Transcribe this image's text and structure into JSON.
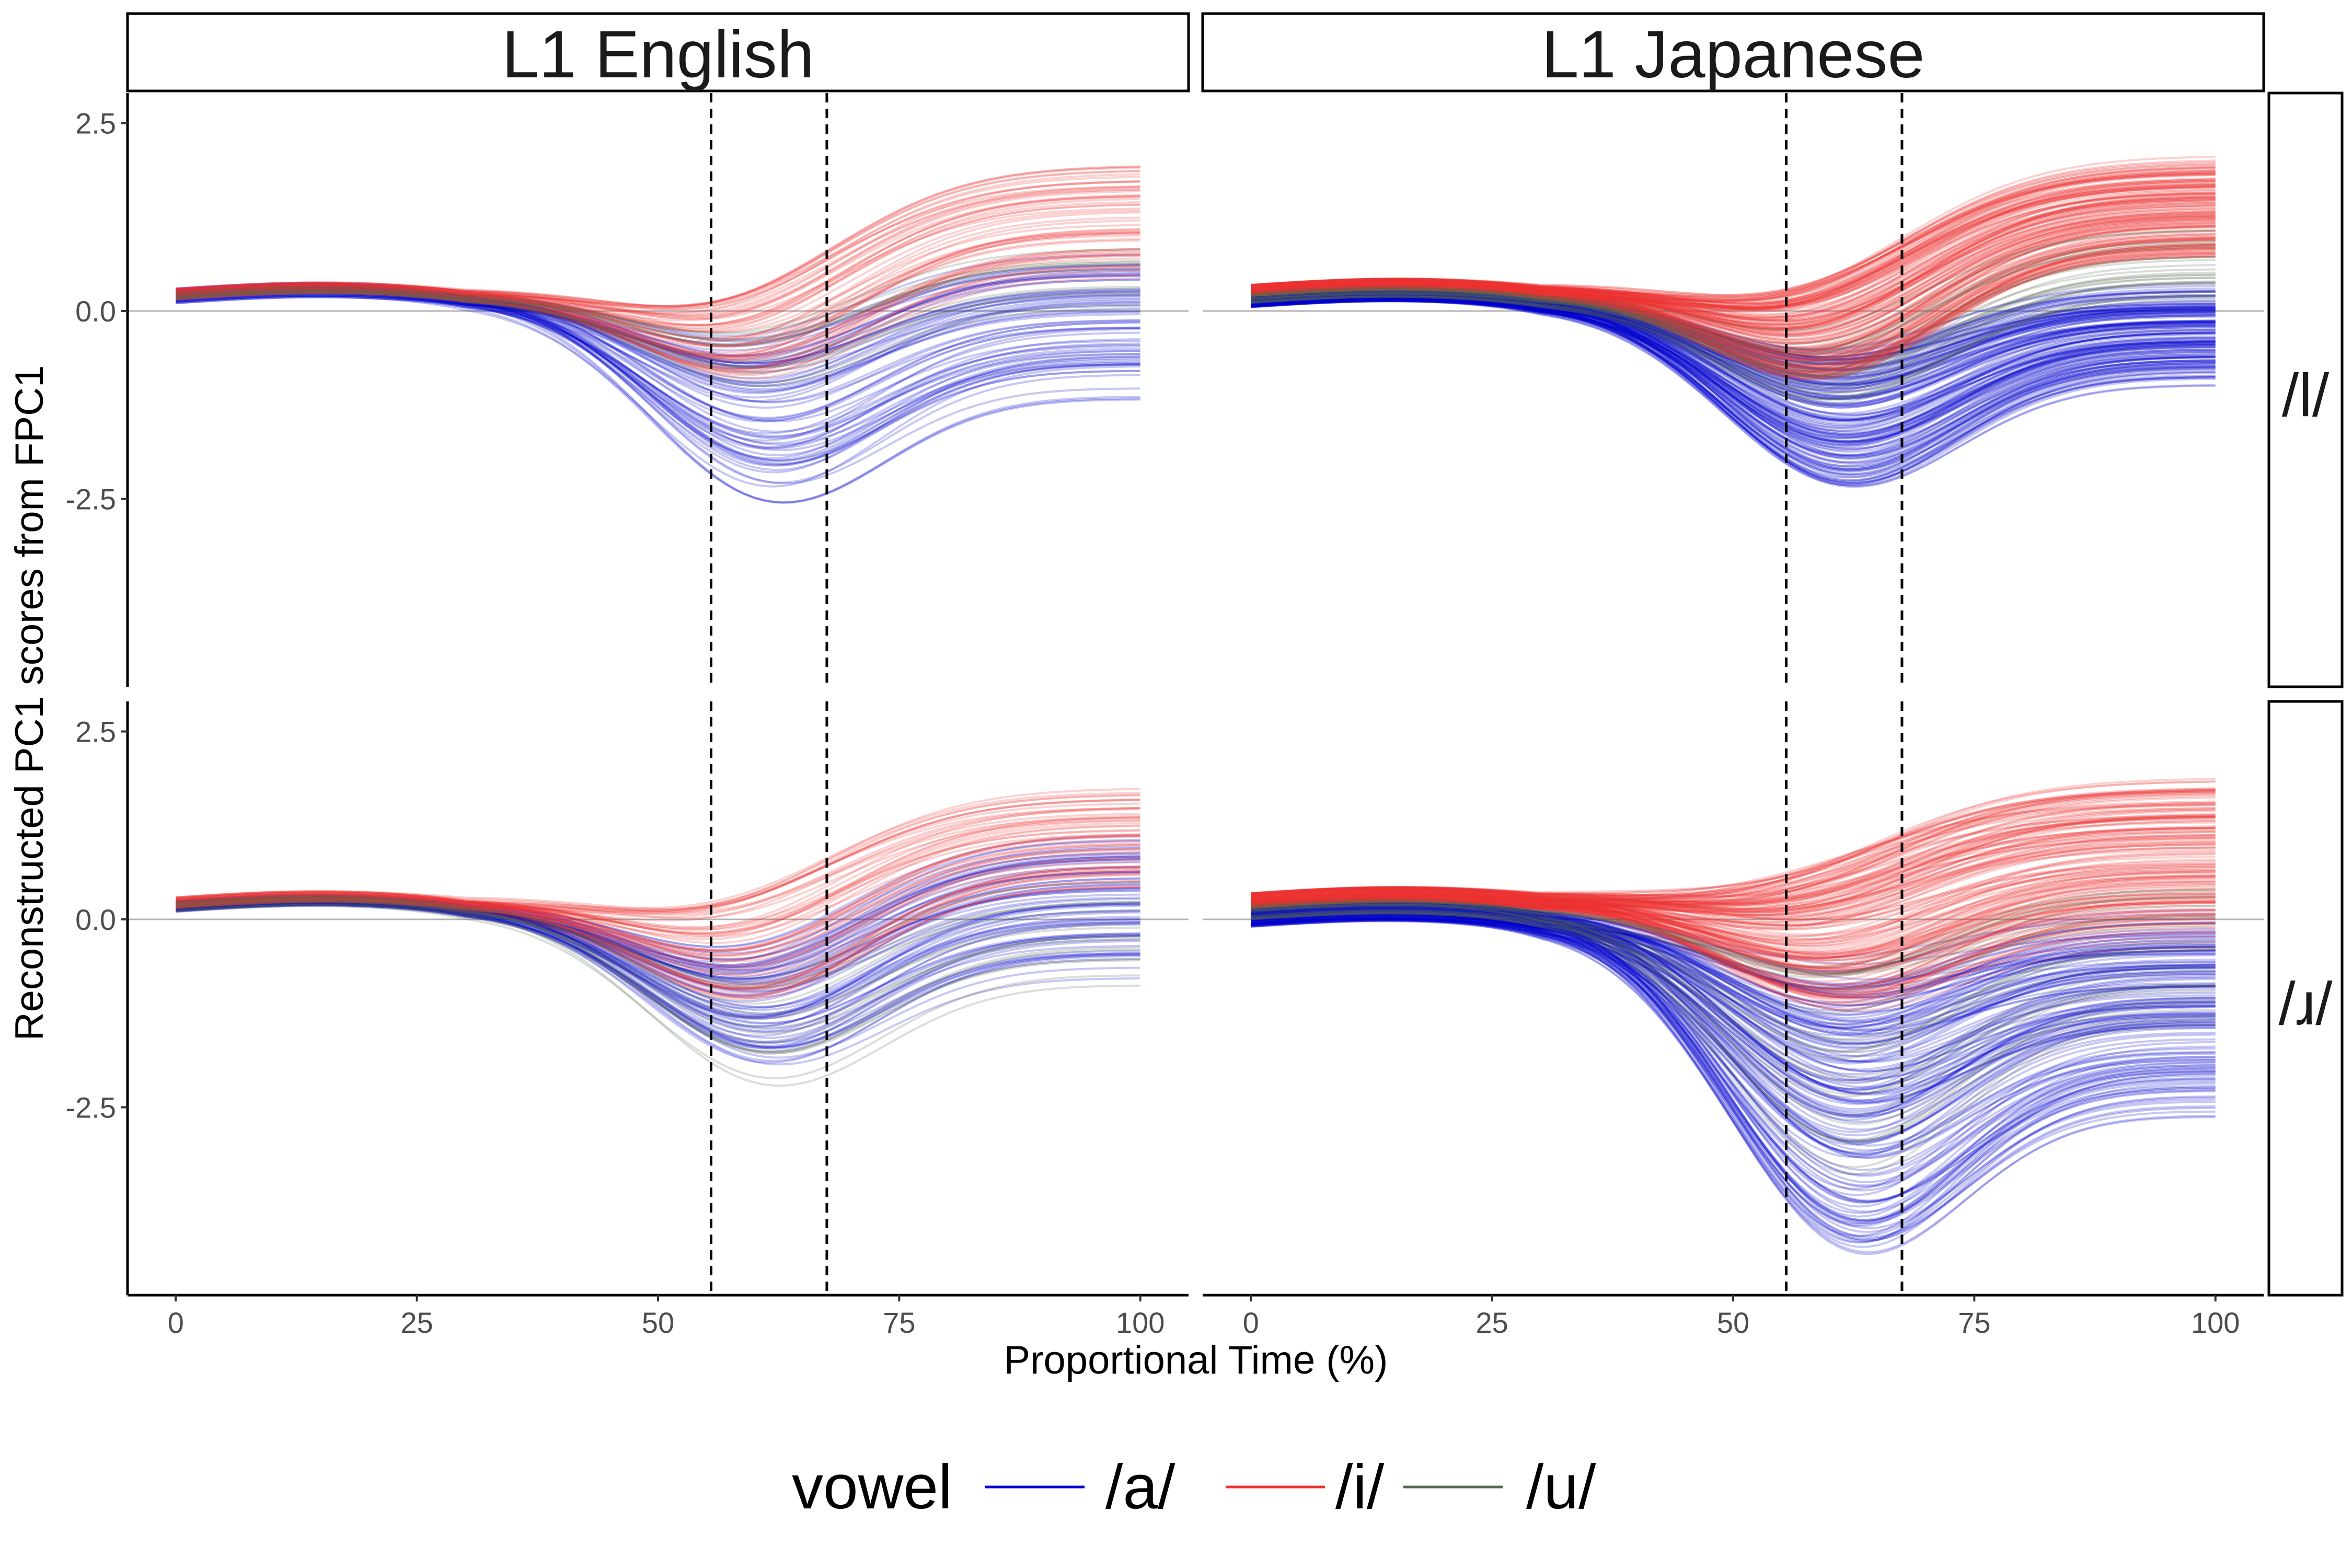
{
  "chart_data": {
    "type": "line",
    "facet_columns": [
      "L1 English",
      "L1 Japanese"
    ],
    "facet_rows": [
      "/l/",
      "/ɹ/"
    ],
    "xlabel": "Proportional Time (%)",
    "ylabel": "Reconstructed PC1 scores from FPC1",
    "x_ticks": [
      "0",
      "25",
      "50",
      "75",
      "100"
    ],
    "y_ticks": [
      "-2.5",
      "0.0",
      "2.5"
    ],
    "xlim": [
      -5,
      105
    ],
    "ylim": [
      -5.0,
      2.9
    ],
    "reference_line_y": 0,
    "vertical_dashed_lines_x": [
      55.5,
      67.5
    ],
    "legend": {
      "title": "vowel",
      "position": "bottom",
      "entries": [
        {
          "label": "/a/",
          "color": "#0000cc"
        },
        {
          "label": "/i/",
          "color": "#ee3333"
        },
        {
          "label": "/u/",
          "color": "#556b4f"
        }
      ]
    },
    "line_alpha": 0.22,
    "series_summary": [
      {
        "facet": "L1 English × /l/",
        "vowel": "/a/",
        "curves": 70,
        "start_y": [
          0.1,
          0.3
        ],
        "dip_y_at_x60": [
          -2.5,
          -0.3
        ],
        "end_y_at_x100": [
          -1.3,
          0.9
        ]
      },
      {
        "facet": "L1 English × /l/",
        "vowel": "/i/",
        "curves": 55,
        "start_y": [
          0.15,
          0.3
        ],
        "dip_y_at_x60": [
          -0.9,
          0.3
        ],
        "end_y_at_x100": [
          0.4,
          2.0
        ]
      },
      {
        "facet": "L1 English × /l/",
        "vowel": "/u/",
        "curves": 12,
        "start_y": [
          0.15,
          0.25
        ],
        "dip_y_at_x60": [
          -1.0,
          -0.2
        ],
        "end_y_at_x100": [
          0.0,
          0.9
        ]
      },
      {
        "facet": "L1 Japanese × /l/",
        "vowel": "/a/",
        "curves": 150,
        "start_y": [
          0.05,
          0.25
        ],
        "dip_y_at_x60": [
          -2.3,
          -0.5
        ],
        "end_y_at_x100": [
          -1.0,
          0.4
        ]
      },
      {
        "facet": "L1 Japanese × /l/",
        "vowel": "/i/",
        "curves": 150,
        "start_y": [
          0.2,
          0.35
        ],
        "dip_y_at_x60": [
          -0.9,
          0.5
        ],
        "end_y_at_x100": [
          0.6,
          2.1
        ]
      },
      {
        "facet": "L1 Japanese × /l/",
        "vowel": "/u/",
        "curves": 25,
        "start_y": [
          0.1,
          0.25
        ],
        "dip_y_at_x60": [
          -1.3,
          -0.2
        ],
        "end_y_at_x100": [
          -0.1,
          1.3
        ]
      },
      {
        "facet": "L1 English × /ɹ/",
        "vowel": "/a/",
        "curves": 70,
        "start_y": [
          0.1,
          0.25
        ],
        "dip_y_at_x60": [
          -1.9,
          -0.3
        ],
        "end_y_at_x100": [
          -0.8,
          1.3
        ]
      },
      {
        "facet": "L1 English × /ɹ/",
        "vowel": "/i/",
        "curves": 55,
        "start_y": [
          0.15,
          0.3
        ],
        "dip_y_at_x60": [
          -1.1,
          0.4
        ],
        "end_y_at_x100": [
          0.3,
          1.8
        ]
      },
      {
        "facet": "L1 English × /ɹ/",
        "vowel": "/u/",
        "curves": 15,
        "start_y": [
          0.1,
          0.25
        ],
        "dip_y_at_x60": [
          -2.2,
          -0.7
        ],
        "end_y_at_x100": [
          -1.0,
          0.6
        ]
      },
      {
        "facet": "L1 Japanese × /ɹ/",
        "vowel": "/a/",
        "curves": 150,
        "start_y": [
          -0.1,
          0.2
        ],
        "dip_y_at_x60": [
          -4.3,
          -0.5
        ],
        "end_y_at_x100": [
          -2.7,
          0.3
        ]
      },
      {
        "facet": "L1 Japanese × /ɹ/",
        "vowel": "/i/",
        "curves": 150,
        "start_y": [
          0.15,
          0.35
        ],
        "dip_y_at_x60": [
          -1.2,
          0.8
        ],
        "end_y_at_x100": [
          -0.5,
          2.0
        ]
      },
      {
        "facet": "L1 Japanese × /ɹ/",
        "vowel": "/u/",
        "curves": 25,
        "start_y": [
          0.0,
          0.2
        ],
        "dip_y_at_x60": [
          -3.7,
          -0.6
        ],
        "end_y_at_x100": [
          -2.1,
          0.5
        ]
      }
    ]
  }
}
